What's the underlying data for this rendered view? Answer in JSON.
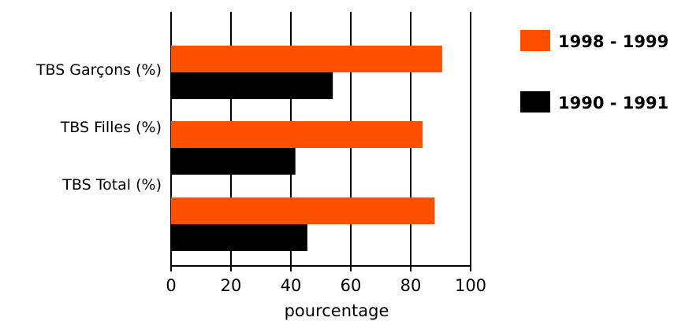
{
  "chart_data": {
    "type": "bar",
    "orientation": "horizontal",
    "categories": [
      "TBS Garçons (%)",
      "TBS Filles (%)",
      "TBS Total (%)"
    ],
    "series": [
      {
        "name": "1998 - 1999",
        "values": [
          90.5,
          84,
          88
        ],
        "color": "#ff5000"
      },
      {
        "name": "1990 - 1991",
        "values": [
          54,
          41.5,
          45.5
        ],
        "color": "#000000"
      }
    ],
    "xlabel": "pourcentage",
    "ylabel": "",
    "xlim": [
      0,
      100
    ],
    "xticks": [
      "0",
      "20",
      "40",
      "60",
      "80",
      "100"
    ],
    "grid": "vertical",
    "legend": "right"
  }
}
